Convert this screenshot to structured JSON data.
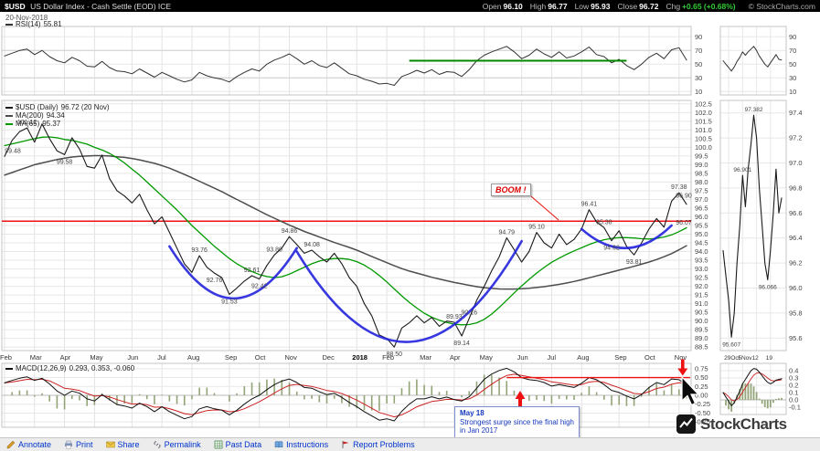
{
  "header": {
    "symbol": "$USD",
    "title": "US Dollar Index - Cash Settle (EOD) ICE",
    "date": "20-Nov-2018",
    "quote": {
      "open_label": "Open",
      "open": "96.10",
      "high_label": "High",
      "high": "96.77",
      "low_label": "Low",
      "low": "95.93",
      "close_label": "Close",
      "close": "96.72",
      "chg_label": "Chg",
      "chg": "+0.65 (+0.68%)"
    },
    "copyright": "© StockCharts.com"
  },
  "legends": {
    "rsi_label": "RSI(14)",
    "rsi_value": "55.81",
    "usd_label": "$USD (Daily)",
    "usd_value": "96.72 (20 Nov)",
    "ma200_label": "MA(200)",
    "ma200_value": "94.34",
    "ma65_label": "MA(65)",
    "ma65_value": "95.37",
    "macd_label": "MACD(12,26,9)",
    "macd_value": "0.293, 0.353, -0.060"
  },
  "annotations": {
    "boom": "BOOM !",
    "callout": {
      "l1": "May 18",
      "l2": "Strongest surge since the final high",
      "l3": "in Jan 2017"
    }
  },
  "colors": {
    "price": "#1a1a1a",
    "ma200": "#4d4d4d",
    "ma65": "#009900",
    "rsi": "#333333",
    "macd": "#111111",
    "macd_signal": "#cc2222",
    "macd_hist": "#93a478",
    "red": "#ee1111",
    "blue_arc": "#2222dd",
    "green": "#008800",
    "link": "#0033cc",
    "chg_up": "#33cc33"
  },
  "chart_data": [
    {
      "id": "rsi",
      "type": "line",
      "title": "RSI(14)",
      "current": 55.81,
      "ylim": [
        0,
        100
      ],
      "yticks": [
        90,
        70,
        50,
        30,
        10
      ],
      "values": [
        62,
        66,
        70,
        72,
        64,
        70,
        61,
        55,
        52,
        60,
        55,
        47,
        46,
        54,
        45,
        40,
        39,
        36,
        43,
        37,
        31,
        38,
        33,
        28,
        24,
        27,
        38,
        33,
        30,
        28,
        24,
        32,
        38,
        43,
        40,
        50,
        56,
        60,
        65,
        58,
        50,
        55,
        48,
        45,
        52,
        44,
        36,
        33,
        28,
        25,
        21,
        22,
        19,
        32,
        36,
        41,
        37,
        42,
        35,
        39,
        38,
        32,
        42,
        55,
        63,
        68,
        72,
        76,
        68,
        58,
        63,
        72,
        65,
        60,
        68,
        59,
        62,
        68,
        75,
        64,
        61,
        52,
        57,
        48,
        42,
        50,
        60,
        66,
        58,
        71,
        74,
        56
      ],
      "trendline": {
        "value": 55,
        "from": 54,
        "to": 83
      }
    },
    {
      "id": "price",
      "type": "line",
      "title": "$USD Daily close",
      "ylim": [
        88.5,
        102.5
      ],
      "yticks": [
        102.5,
        102.0,
        101.5,
        101.0,
        100.5,
        100.0,
        99.5,
        99.0,
        98.5,
        98.0,
        97.5,
        97.0,
        96.5,
        96.0,
        95.5,
        95.0,
        94.5,
        94.0,
        93.5,
        93.0,
        92.5,
        92.0,
        91.5,
        91.0,
        90.5,
        90.0,
        89.5,
        89.0,
        88.5
      ],
      "months": {
        "labels": [
          "Feb",
          "Mar",
          "Apr",
          "May",
          "Jun",
          "Jul",
          "Aug",
          "Sep",
          "Oct",
          "Nov",
          "Dec",
          "2018",
          "Feb",
          "Mar",
          "Apr",
          "May",
          "Jun",
          "Jul",
          "Aug",
          "Sep",
          "Oct",
          "Nov"
        ],
        "starts": [
          0,
          4,
          8,
          12,
          17,
          21,
          25,
          30,
          34,
          38,
          43,
          47,
          51,
          56,
          60,
          64,
          69,
          73,
          77,
          82,
          86,
          90
        ]
      },
      "series": [
        {
          "name": "$USD (Daily)",
          "color_key": "price",
          "values": [
            99.48,
            100.4,
            100.9,
            101.12,
            100.3,
            101.35,
            100.5,
            99.8,
            99.58,
            100.55,
            99.9,
            98.9,
            98.8,
            99.55,
            98.2,
            97.5,
            97.2,
            96.8,
            97.3,
            96.4,
            95.6,
            96.0,
            95.1,
            94.2,
            93.3,
            92.8,
            93.76,
            93.1,
            92.76,
            92.5,
            91.53,
            91.9,
            92.3,
            92.61,
            92.42,
            93.2,
            93.8,
            94.2,
            94.86,
            94.4,
            93.9,
            94.08,
            93.7,
            93.4,
            93.9,
            93.3,
            92.5,
            92.0,
            91.0,
            90.3,
            89.2,
            89.0,
            88.5,
            89.6,
            89.9,
            90.3,
            89.9,
            90.2,
            89.7,
            90.0,
            89.93,
            89.14,
            90.16,
            91.2,
            92.0,
            92.9,
            93.7,
            94.79,
            94.1,
            93.4,
            94.0,
            95.1,
            94.5,
            94.2,
            95.0,
            94.4,
            94.7,
            95.3,
            96.41,
            95.7,
            95.38,
            94.62,
            95.2,
            94.3,
            93.81,
            94.5,
            95.3,
            95.9,
            95.4,
            96.9,
            97.38,
            96.72
          ]
        },
        {
          "name": "MA(200)",
          "color_key": "ma200",
          "values": [
            98.4,
            98.55,
            98.7,
            98.85,
            99.0,
            99.1,
            99.2,
            99.3,
            99.38,
            99.44,
            99.48,
            99.5,
            99.52,
            99.52,
            99.5,
            99.46,
            99.42,
            99.36,
            99.28,
            99.18,
            99.08,
            98.95,
            98.8,
            98.62,
            98.44,
            98.25,
            98.05,
            97.85,
            97.65,
            97.45,
            97.22,
            97.0,
            96.78,
            96.56,
            96.34,
            96.12,
            95.92,
            95.72,
            95.52,
            95.34,
            95.16,
            95.0,
            94.84,
            94.68,
            94.52,
            94.38,
            94.24,
            94.08,
            93.9,
            93.72,
            93.54,
            93.36,
            93.18,
            93.02,
            92.88,
            92.76,
            92.64,
            92.52,
            92.42,
            92.32,
            92.22,
            92.14,
            92.06,
            91.98,
            91.92,
            91.88,
            91.85,
            91.84,
            91.84,
            91.86,
            91.89,
            91.93,
            91.98,
            92.04,
            92.11,
            92.19,
            92.28,
            92.38,
            92.49,
            92.6,
            92.71,
            92.82,
            92.93,
            93.04,
            93.15,
            93.27,
            93.4,
            93.54,
            93.7,
            93.88,
            94.1,
            94.34
          ]
        },
        {
          "name": "MA(65)",
          "color_key": "ma65",
          "values": [
            100.1,
            100.2,
            100.3,
            100.4,
            100.5,
            100.58,
            100.6,
            100.55,
            100.45,
            100.4,
            100.3,
            100.18,
            100.0,
            99.85,
            99.65,
            99.4,
            99.1,
            98.75,
            98.4,
            98.0,
            97.6,
            97.2,
            96.8,
            96.4,
            95.95,
            95.5,
            95.1,
            94.7,
            94.3,
            93.95,
            93.6,
            93.3,
            93.05,
            92.85,
            92.68,
            92.56,
            92.5,
            92.55,
            92.7,
            92.9,
            93.1,
            93.3,
            93.45,
            93.55,
            93.6,
            93.6,
            93.55,
            93.42,
            93.22,
            92.95,
            92.62,
            92.25,
            91.85,
            91.45,
            91.08,
            90.75,
            90.45,
            90.22,
            90.05,
            89.92,
            89.82,
            89.78,
            89.8,
            89.9,
            90.1,
            90.4,
            90.78,
            91.2,
            91.62,
            92.02,
            92.4,
            92.76,
            93.08,
            93.38,
            93.62,
            93.84,
            94.04,
            94.22,
            94.4,
            94.56,
            94.68,
            94.76,
            94.8,
            94.8,
            94.78,
            94.74,
            94.72,
            94.76,
            94.84,
            94.96,
            95.15,
            95.37
          ]
        }
      ],
      "point_labels": [
        {
          "i": 0,
          "v": 99.48,
          "t": "99.48",
          "d": "up"
        },
        {
          "i": 3,
          "v": 101.12,
          "t": "101.12",
          "d": "up"
        },
        {
          "i": 8,
          "v": 99.58,
          "t": "99.58",
          "d": "dn"
        },
        {
          "i": 26,
          "v": 93.76,
          "t": "93.76",
          "d": "up"
        },
        {
          "i": 28,
          "v": 92.76,
          "t": "92.76",
          "d": "dn"
        },
        {
          "i": 30,
          "v": 91.53,
          "t": "91.53",
          "d": "dn"
        },
        {
          "i": 33,
          "v": 92.61,
          "t": "92.61",
          "d": "up"
        },
        {
          "i": 34,
          "v": 92.42,
          "t": "92.42",
          "d": "dn"
        },
        {
          "i": 36,
          "v": 93.8,
          "t": "93.80",
          "d": "up"
        },
        {
          "i": 38,
          "v": 94.86,
          "t": "94.86",
          "d": "up"
        },
        {
          "i": 41,
          "v": 94.08,
          "t": "94.08",
          "d": "up"
        },
        {
          "i": 52,
          "v": 88.5,
          "t": "88.50",
          "d": "dn"
        },
        {
          "i": 60,
          "v": 89.93,
          "t": "89.93",
          "d": "up"
        },
        {
          "i": 61,
          "v": 89.14,
          "t": "89.14",
          "d": "dn"
        },
        {
          "i": 62,
          "v": 90.16,
          "t": "90.16",
          "d": "up"
        },
        {
          "i": 67,
          "v": 94.79,
          "t": "94.79",
          "d": "up"
        },
        {
          "i": 71,
          "v": 95.1,
          "t": "95.10",
          "d": "up"
        },
        {
          "i": 78,
          "v": 96.41,
          "t": "96.41",
          "d": "up"
        },
        {
          "i": 80,
          "v": 95.38,
          "t": "95.38",
          "d": "up"
        },
        {
          "i": 81,
          "v": 94.62,
          "t": "94.62",
          "d": "dn"
        },
        {
          "i": 84,
          "v": 93.81,
          "t": "93.81",
          "d": "dn"
        },
        {
          "i": 90,
          "v": 97.38,
          "t": "97.38",
          "d": "up"
        },
        {
          "i": 91,
          "v": 96.9,
          "t": "96.90",
          "d": "up"
        },
        {
          "i": 91,
          "v": 96.07,
          "t": "96.07",
          "d": "dn"
        }
      ],
      "resistance_line": {
        "value": 95.75
      },
      "cups": [
        {
          "i1": 22,
          "v1": 94.3,
          "i2": 39,
          "v2": 94.2,
          "ctrl": 88.35
        },
        {
          "i1": 39,
          "v1": 94.0,
          "i2": 69,
          "v2": 94.6,
          "ctrl": 83.3
        },
        {
          "i1": 77,
          "v1": 95.3,
          "i2": 89,
          "v2": 95.5,
          "ctrl": 93.0
        }
      ]
    },
    {
      "id": "macd",
      "type": "line",
      "title": "MACD(12,26,9)",
      "current_text": "0.293, 0.353, -0.060",
      "yticks": [
        0.75,
        0.5,
        0.25,
        0.0,
        -0.25,
        -0.5,
        -0.75
      ],
      "values": [
        0.35,
        0.42,
        0.48,
        0.52,
        0.42,
        0.48,
        0.32,
        0.12,
        0.0,
        0.12,
        0.06,
        -0.1,
        -0.16,
        0.02,
        -0.12,
        -0.26,
        -0.3,
        -0.36,
        -0.22,
        -0.32,
        -0.46,
        -0.32,
        -0.46,
        -0.56,
        -0.66,
        -0.6,
        -0.38,
        -0.32,
        -0.38,
        -0.42,
        -0.55,
        -0.42,
        -0.25,
        -0.1,
        0.0,
        0.16,
        0.3,
        0.4,
        0.46,
        0.36,
        0.22,
        0.2,
        0.1,
        0.02,
        0.06,
        -0.06,
        -0.2,
        -0.32,
        -0.46,
        -0.58,
        -0.7,
        -0.66,
        -0.72,
        -0.45,
        -0.25,
        -0.1,
        -0.1,
        -0.04,
        -0.1,
        -0.05,
        -0.12,
        -0.16,
        -0.04,
        0.2,
        0.45,
        0.6,
        0.7,
        0.76,
        0.66,
        0.5,
        0.44,
        0.42,
        0.36,
        0.26,
        0.3,
        0.26,
        0.22,
        0.34,
        0.5,
        0.44,
        0.3,
        0.14,
        0.08,
        -0.02,
        -0.1,
        0.02,
        0.22,
        0.36,
        0.3,
        0.46,
        0.44,
        0.29
      ],
      "red_line": {
        "value": 0.5,
        "from": 67
      },
      "red_arrow_i": 90
    },
    {
      "id": "mini_rsi",
      "type": "line",
      "yticks": [
        90,
        70,
        50,
        30,
        10
      ],
      "values": [
        55,
        50,
        45,
        40,
        46,
        54,
        60,
        68,
        63,
        68,
        72,
        76,
        70,
        62,
        56,
        50,
        46,
        52,
        58,
        64,
        57,
        56
      ]
    },
    {
      "id": "mini_price",
      "type": "line",
      "yticks": [
        97.4,
        97.2,
        97.0,
        96.8,
        96.6,
        96.4,
        96.2,
        96.0,
        95.8,
        95.6
      ],
      "values": [
        96.3,
        96.1,
        95.9,
        95.607,
        95.8,
        96.2,
        96.5,
        96.901,
        96.65,
        96.95,
        97.15,
        97.382,
        97.2,
        96.8,
        96.5,
        96.2,
        96.066,
        96.3,
        96.6,
        96.95,
        96.6,
        96.72
      ],
      "point_labels": [
        {
          "i": 3,
          "v": 95.607,
          "t": "95.607",
          "d": "dn"
        },
        {
          "i": 7,
          "v": 96.901,
          "t": "96.901",
          "d": "up"
        },
        {
          "i": 11,
          "v": 97.382,
          "t": "97.382",
          "d": "up"
        },
        {
          "i": 16,
          "v": 96.066,
          "t": "96.066",
          "d": "dn"
        }
      ],
      "xticks": [
        {
          "i": 2,
          "t": "29Oct"
        },
        {
          "i": 7,
          "t": "5Nov"
        },
        {
          "i": 12,
          "t": "12"
        },
        {
          "i": 17,
          "t": "19"
        }
      ]
    },
    {
      "id": "mini_macd",
      "type": "line",
      "yticks": [
        0.4,
        0.3,
        0.2,
        0.1,
        0.0,
        -0.1
      ],
      "values": [
        0.1,
        0.04,
        -0.02,
        -0.08,
        -0.04,
        0.04,
        0.12,
        0.22,
        0.28,
        0.34,
        0.4,
        0.43,
        0.42,
        0.38,
        0.33,
        0.28,
        0.24,
        0.22,
        0.24,
        0.27,
        0.28,
        0.29
      ]
    }
  ],
  "toolbar": {
    "items": [
      {
        "label": "Annotate",
        "icon": "pencil"
      },
      {
        "label": "Print",
        "icon": "printer"
      },
      {
        "label": "Share",
        "icon": "envelope"
      },
      {
        "label": "Permalink",
        "icon": "link"
      },
      {
        "label": "Past Data",
        "icon": "table"
      },
      {
        "label": "Instructions",
        "icon": "book"
      },
      {
        "label": "Report Problems",
        "icon": "flag"
      }
    ]
  },
  "logo": {
    "text": "StockCharts"
  }
}
